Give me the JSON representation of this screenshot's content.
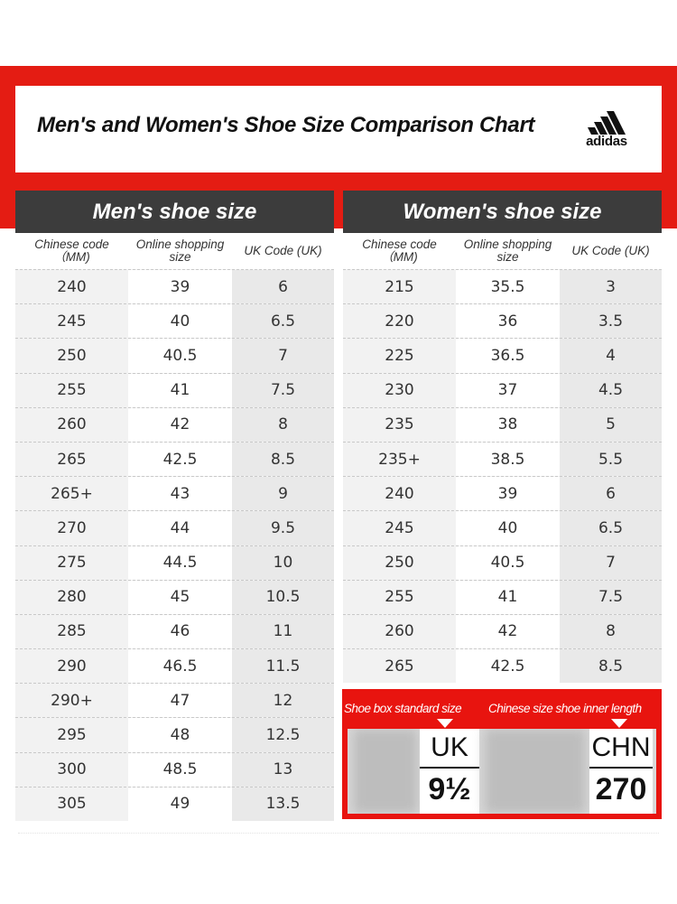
{
  "header": {
    "title": "Men's and Women's Shoe Size Comparison Chart",
    "brand": "adidas"
  },
  "men": {
    "heading": "Men's shoe size",
    "columns": [
      "Chinese code （MM)",
      "Online shopping size",
      "UK Code (UK)"
    ],
    "rows": [
      [
        "240",
        "39",
        "6"
      ],
      [
        "245",
        "40",
        "6.5"
      ],
      [
        "250",
        "40.5",
        "7"
      ],
      [
        "255",
        "41",
        "7.5"
      ],
      [
        "260",
        "42",
        "8"
      ],
      [
        "265",
        "42.5",
        "8.5"
      ],
      [
        "265+",
        "43",
        "9"
      ],
      [
        "270",
        "44",
        "9.5"
      ],
      [
        "275",
        "44.5",
        "10"
      ],
      [
        "280",
        "45",
        "10.5"
      ],
      [
        "285",
        "46",
        "11"
      ],
      [
        "290",
        "46.5",
        "11.5"
      ],
      [
        "290+",
        "47",
        "12"
      ],
      [
        "295",
        "48",
        "12.5"
      ],
      [
        "300",
        "48.5",
        "13"
      ],
      [
        "305",
        "49",
        "13.5"
      ]
    ]
  },
  "women": {
    "heading": "Women's shoe size",
    "columns": [
      "Chinese code （MM)",
      "Online shopping size",
      "UK Code (UK)"
    ],
    "rows": [
      [
        "215",
        "35.5",
        "3"
      ],
      [
        "220",
        "36",
        "3.5"
      ],
      [
        "225",
        "36.5",
        "4"
      ],
      [
        "230",
        "37",
        "4.5"
      ],
      [
        "235",
        "38",
        "5"
      ],
      [
        "235+",
        "38.5",
        "5.5"
      ],
      [
        "240",
        "39",
        "6"
      ],
      [
        "245",
        "40",
        "6.5"
      ],
      [
        "250",
        "40.5",
        "7"
      ],
      [
        "255",
        "41",
        "7.5"
      ],
      [
        "260",
        "42",
        "8"
      ],
      [
        "265",
        "42.5",
        "8.5"
      ]
    ]
  },
  "reference": {
    "left_label": "Shoe box standard size",
    "right_label": "Chinese size shoe inner length",
    "left_tag": {
      "top": "UK",
      "bottom": "9½"
    },
    "right_tag": {
      "top": "CHN",
      "bottom": "270"
    }
  },
  "colors": {
    "accent_red": "#e41c13",
    "header_dark": "#3c3c3c"
  }
}
